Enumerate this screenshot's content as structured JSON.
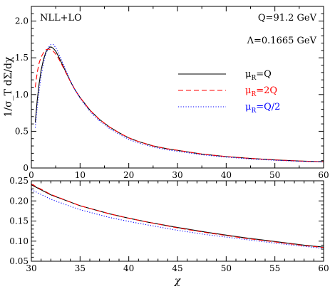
{
  "chart_data": [
    {
      "type": "line",
      "panel": "top",
      "ylabel": "1/σ_T dΣ/dχ",
      "xlim": [
        0,
        60
      ],
      "ylim": [
        0,
        2.2
      ],
      "x_ticks": [
        "0",
        "10",
        "20",
        "30",
        "40",
        "50",
        "60"
      ],
      "y_ticks": [
        "0",
        "0.5",
        "1.0",
        "1.5",
        "2.0"
      ],
      "annotations": {
        "label": "NLL+LO",
        "q": "Q=91.2 GeV",
        "lambda": "Λ=0.1665 GeV"
      },
      "legend": {
        "placement": "right",
        "entries": [
          {
            "label": "μ",
            "sub": "R",
            "suffix": "=Q"
          },
          {
            "label": "μ",
            "sub": "R",
            "suffix": "=2Q"
          },
          {
            "label": "μ",
            "sub": "R",
            "suffix": "=Q/2"
          }
        ]
      },
      "series": [
        {
          "name": "μR=Q",
          "color": "#000000",
          "dash": "solid",
          "x": [
            0.8,
            1.2,
            1.6,
            2.0,
            2.5,
            3.0,
            3.5,
            4.0,
            4.5,
            5.0,
            5.5,
            6.0,
            7.0,
            8.0,
            9.0,
            10,
            12,
            14,
            16,
            18,
            20,
            22,
            25,
            28,
            30,
            35,
            40,
            45,
            50,
            55,
            60
          ],
          "y": [
            0.62,
            0.92,
            1.15,
            1.33,
            1.48,
            1.58,
            1.63,
            1.65,
            1.63,
            1.59,
            1.53,
            1.46,
            1.32,
            1.18,
            1.06,
            0.96,
            0.79,
            0.66,
            0.56,
            0.48,
            0.41,
            0.36,
            0.3,
            0.26,
            0.24,
            0.19,
            0.155,
            0.13,
            0.11,
            0.095,
            0.085
          ]
        },
        {
          "name": "μR=2Q",
          "color": "#ff0000",
          "dash": "dashed",
          "x": [
            0.8,
            1.2,
            1.6,
            2.0,
            2.5,
            3.0,
            3.5,
            4.0,
            4.5,
            5.0,
            5.5,
            6.0,
            7.0,
            8.0,
            9.0,
            10,
            12,
            14,
            16,
            18,
            20,
            22,
            25,
            28,
            30,
            35,
            40,
            45,
            50,
            55,
            60
          ],
          "y": [
            1.1,
            1.3,
            1.43,
            1.51,
            1.57,
            1.61,
            1.62,
            1.61,
            1.59,
            1.55,
            1.5,
            1.44,
            1.31,
            1.18,
            1.06,
            0.96,
            0.79,
            0.66,
            0.56,
            0.48,
            0.41,
            0.36,
            0.3,
            0.26,
            0.242,
            0.19,
            0.155,
            0.13,
            0.11,
            0.095,
            0.084
          ]
        },
        {
          "name": "μR=Q/2",
          "color": "#0000ff",
          "dash": "dotted",
          "x": [
            0.8,
            1.2,
            1.6,
            2.0,
            2.5,
            3.0,
            3.5,
            4.0,
            4.5,
            5.0,
            5.5,
            6.0,
            7.0,
            8.0,
            9.0,
            10,
            12,
            14,
            16,
            18,
            20,
            22,
            25,
            28,
            30,
            35,
            40,
            45,
            50,
            55,
            60
          ],
          "y": [
            0.55,
            0.82,
            1.05,
            1.25,
            1.43,
            1.56,
            1.64,
            1.68,
            1.68,
            1.64,
            1.58,
            1.5,
            1.34,
            1.19,
            1.06,
            0.95,
            0.77,
            0.64,
            0.54,
            0.46,
            0.39,
            0.34,
            0.285,
            0.245,
            0.228,
            0.18,
            0.148,
            0.123,
            0.105,
            0.092,
            0.082
          ]
        }
      ]
    },
    {
      "type": "line",
      "panel": "bottom",
      "xlabel": "χ",
      "xlim": [
        30,
        60
      ],
      "ylim": [
        0.05,
        0.25
      ],
      "x_ticks": [
        "30",
        "35",
        "40",
        "45",
        "50",
        "55",
        "60"
      ],
      "y_ticks": [
        "0.05",
        "0.10",
        "0.15",
        "0.20",
        "0.25"
      ],
      "series": [
        {
          "name": "μR=Q",
          "color": "#000000",
          "dash": "solid",
          "x": [
            30,
            32,
            35,
            38,
            40,
            42,
            45,
            48,
            50,
            52,
            55,
            58,
            60
          ],
          "y": [
            0.24,
            0.215,
            0.188,
            0.168,
            0.157,
            0.147,
            0.134,
            0.122,
            0.115,
            0.108,
            0.099,
            0.09,
            0.085
          ]
        },
        {
          "name": "μR=2Q",
          "color": "#ff0000",
          "dash": "dashed",
          "x": [
            30,
            32,
            35,
            38,
            40,
            42,
            45,
            48,
            50,
            52,
            55,
            58,
            60
          ],
          "y": [
            0.242,
            0.216,
            0.188,
            0.168,
            0.157,
            0.147,
            0.133,
            0.121,
            0.114,
            0.107,
            0.098,
            0.089,
            0.084
          ]
        },
        {
          "name": "μR=Q/2",
          "color": "#0000ff",
          "dash": "dotted",
          "x": [
            30,
            32,
            35,
            38,
            40,
            42,
            45,
            48,
            50,
            52,
            55,
            58,
            60
          ],
          "y": [
            0.228,
            0.204,
            0.178,
            0.159,
            0.149,
            0.14,
            0.127,
            0.116,
            0.11,
            0.104,
            0.095,
            0.087,
            0.082
          ]
        }
      ]
    }
  ]
}
